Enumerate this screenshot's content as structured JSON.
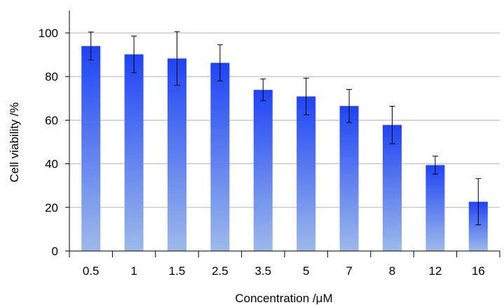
{
  "chart_data": {
    "type": "bar",
    "title": "",
    "xlabel": "Concentration /μM",
    "ylabel": "Cell viability /%",
    "categories": [
      "0.5",
      "1",
      "1.5",
      "2.5",
      "3.5",
      "5",
      "7",
      "8",
      "12",
      "16"
    ],
    "values": [
      94.0,
      90.2,
      88.3,
      86.3,
      73.9,
      70.9,
      66.5,
      57.8,
      39.4,
      22.6
    ],
    "error_bars": [
      6.4,
      8.4,
      12.3,
      8.3,
      5.0,
      8.4,
      7.6,
      8.6,
      4.1,
      10.6
    ],
    "ylim": [
      0,
      110
    ],
    "y_ticks": [
      0,
      20,
      40,
      60,
      80,
      100
    ],
    "grid": "horizontal",
    "bar_gradient": {
      "top": "#1f44f5",
      "bottom": "#9dbaea"
    },
    "colors": {
      "grid": "#b5b5b5",
      "axis": "#000000",
      "error_bar": "#000000"
    }
  }
}
